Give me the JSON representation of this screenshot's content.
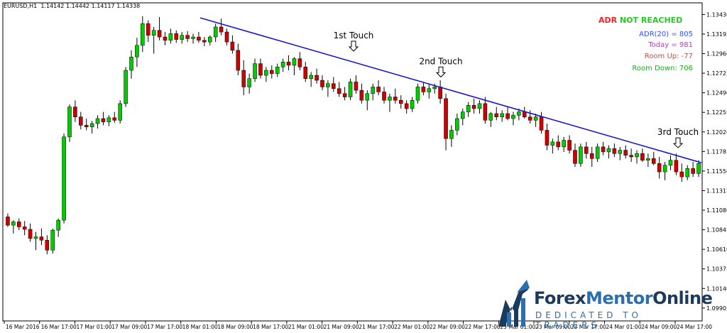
{
  "header": {
    "symbol": "EURUSD,H1",
    "ohlc": "1.14142 1.14442 1.14117 1.14338"
  },
  "adr_panel": {
    "title_part1": "ADR",
    "title_part2": "NOT",
    "title_part3": "REACHED",
    "adr20": "ADR(20) = 805",
    "today": "Today = 981",
    "room_up": "Room Up: -77",
    "room_down": "Room Down: 706",
    "colors": {
      "title_red": "#ff2020",
      "title_green": "#22cc22",
      "adr20": "#3050ff",
      "today": "#b040c0",
      "room_up": "#e04040",
      "room_down": "#22aa22"
    }
  },
  "logo": {
    "word_dark": "Forex",
    "word_mid": "Mentor",
    "word_dark2": "Online",
    "tagline": "DEDICATED TO TRADERS"
  },
  "chart_data": {
    "type": "candlestick",
    "y_ticks": [
      "1.13430",
      "1.13195",
      "1.12960",
      "1.12725",
      "1.12490",
      "1.12255",
      "1.12020",
      "1.11785",
      "1.11550",
      "1.11315",
      "1.11080",
      "1.10845",
      "1.10610",
      "1.10375",
      "1.10140",
      "1.09905"
    ],
    "ylim": [
      1.0975,
      1.1357
    ],
    "x_labels": [
      "16 Mar 2016",
      "16 Mar 17:00",
      "17 Mar 01:00",
      "17 Mar 09:00",
      "17 Mar 17:00",
      "18 Mar 01:00",
      "18 Mar 09:00",
      "18 Mar 17:00",
      "21 Mar 01:00",
      "21 Mar 09:00",
      "21 Mar 17:00",
      "22 Mar 01:00",
      "22 Mar 09:00",
      "22 Mar 17:00",
      "23 Mar 01:00",
      "23 Mar 09:00",
      "23 Mar 17:00",
      "24 Mar 01:00",
      "24 Mar 09:00",
      "24 Mar 17:00"
    ],
    "annotations": [
      "1st Touch",
      "2nd Touch",
      "3rd Touch"
    ],
    "trendline": {
      "start": [
        1.1339,
        0
      ],
      "end": [
        1.1165,
        1
      ]
    },
    "bullish_color": "#00cc00",
    "bearish_color": "#cc0000",
    "trendline_color": "#1a1acc",
    "candles": [
      [
        1.11,
        1.1104,
        1.1088,
        1.109
      ],
      [
        1.109,
        1.1096,
        1.108,
        1.1094
      ],
      [
        1.1094,
        1.1098,
        1.1084,
        1.1088
      ],
      [
        1.1088,
        1.1095,
        1.1078,
        1.1085
      ],
      [
        1.1085,
        1.1092,
        1.107,
        1.1074
      ],
      [
        1.1074,
        1.1082,
        1.106,
        1.1076
      ],
      [
        1.1076,
        1.1086,
        1.1066,
        1.1072
      ],
      [
        1.1072,
        1.1078,
        1.1055,
        1.106
      ],
      [
        1.106,
        1.1086,
        1.1056,
        1.1084
      ],
      [
        1.1084,
        1.1098,
        1.1076,
        1.1096
      ],
      [
        1.1096,
        1.12,
        1.1092,
        1.1196
      ],
      [
        1.1196,
        1.1235,
        1.119,
        1.1232
      ],
      [
        1.1232,
        1.124,
        1.1214,
        1.122
      ],
      [
        1.122,
        1.1226,
        1.1205,
        1.121
      ],
      [
        1.121,
        1.1218,
        1.1204,
        1.1208
      ],
      [
        1.1208,
        1.1215,
        1.12,
        1.1212
      ],
      [
        1.1212,
        1.1222,
        1.1206,
        1.1218
      ],
      [
        1.1218,
        1.1226,
        1.121,
        1.1214
      ],
      [
        1.1214,
        1.1222,
        1.1209,
        1.1219
      ],
      [
        1.1219,
        1.1226,
        1.1213,
        1.1216
      ],
      [
        1.1216,
        1.124,
        1.1212,
        1.1236
      ],
      [
        1.1236,
        1.128,
        1.1232,
        1.1276
      ],
      [
        1.1276,
        1.13,
        1.1266,
        1.1292
      ],
      [
        1.1292,
        1.1315,
        1.128,
        1.1306
      ],
      [
        1.1306,
        1.1341,
        1.1298,
        1.1332
      ],
      [
        1.1332,
        1.1336,
        1.131,
        1.1318
      ],
      [
        1.1318,
        1.1328,
        1.1296,
        1.1324
      ],
      [
        1.1324,
        1.134,
        1.1312,
        1.1316
      ],
      [
        1.1316,
        1.1322,
        1.1306,
        1.1312
      ],
      [
        1.1312,
        1.1326,
        1.1308,
        1.132
      ],
      [
        1.132,
        1.1324,
        1.1309,
        1.1313
      ],
      [
        1.1313,
        1.1322,
        1.1308,
        1.1318
      ],
      [
        1.1318,
        1.1323,
        1.131,
        1.1314
      ],
      [
        1.1314,
        1.132,
        1.1308,
        1.1316
      ],
      [
        1.1316,
        1.1322,
        1.1309,
        1.1312
      ],
      [
        1.1312,
        1.1316,
        1.1305,
        1.131
      ],
      [
        1.131,
        1.1318,
        1.1306,
        1.1316
      ],
      [
        1.1316,
        1.1332,
        1.131,
        1.1328
      ],
      [
        1.1328,
        1.1338,
        1.1318,
        1.1322
      ],
      [
        1.1322,
        1.1326,
        1.1306,
        1.131
      ],
      [
        1.131,
        1.1318,
        1.1296,
        1.13
      ],
      [
        1.13,
        1.1308,
        1.127,
        1.1276
      ],
      [
        1.1276,
        1.1288,
        1.1246,
        1.1256
      ],
      [
        1.1256,
        1.1272,
        1.1248,
        1.1266
      ],
      [
        1.1266,
        1.129,
        1.1262,
        1.1284
      ],
      [
        1.1284,
        1.129,
        1.1266,
        1.127
      ],
      [
        1.127,
        1.128,
        1.1262,
        1.1276
      ],
      [
        1.1276,
        1.1282,
        1.1266,
        1.1272
      ],
      [
        1.1272,
        1.1284,
        1.1268,
        1.128
      ],
      [
        1.128,
        1.129,
        1.1274,
        1.1286
      ],
      [
        1.1286,
        1.1294,
        1.1276,
        1.1282
      ],
      [
        1.1282,
        1.1292,
        1.127,
        1.129
      ],
      [
        1.129,
        1.1298,
        1.1276,
        1.128
      ],
      [
        1.128,
        1.1286,
        1.1262,
        1.1266
      ],
      [
        1.1266,
        1.1274,
        1.1256,
        1.127
      ],
      [
        1.127,
        1.1278,
        1.126,
        1.1264
      ],
      [
        1.1264,
        1.127,
        1.1252,
        1.1256
      ],
      [
        1.1256,
        1.1264,
        1.1244,
        1.126
      ],
      [
        1.126,
        1.1268,
        1.125,
        1.1254
      ],
      [
        1.1254,
        1.1262,
        1.1244,
        1.1248
      ],
      [
        1.1248,
        1.1256,
        1.124,
        1.1244
      ],
      [
        1.1244,
        1.1266,
        1.124,
        1.1262
      ],
      [
        1.1262,
        1.127,
        1.1248,
        1.1252
      ],
      [
        1.1252,
        1.126,
        1.1236,
        1.124
      ],
      [
        1.124,
        1.1252,
        1.1228,
        1.1248
      ],
      [
        1.1248,
        1.126,
        1.124,
        1.1256
      ],
      [
        1.1256,
        1.1264,
        1.1246,
        1.125
      ],
      [
        1.125,
        1.1256,
        1.1236,
        1.124
      ],
      [
        1.124,
        1.1248,
        1.1226,
        1.1244
      ],
      [
        1.1244,
        1.1254,
        1.1236,
        1.124
      ],
      [
        1.124,
        1.1246,
        1.123,
        1.1236
      ],
      [
        1.1236,
        1.124,
        1.1224,
        1.123
      ],
      [
        1.123,
        1.1244,
        1.1226,
        1.124
      ],
      [
        1.124,
        1.126,
        1.1236,
        1.1256
      ],
      [
        1.1256,
        1.1262,
        1.1246,
        1.125
      ],
      [
        1.125,
        1.126,
        1.1242,
        1.1254
      ],
      [
        1.1254,
        1.126,
        1.1248,
        1.1256
      ],
      [
        1.1256,
        1.1264,
        1.1236,
        1.1242
      ],
      [
        1.1242,
        1.1248,
        1.118,
        1.1194
      ],
      [
        1.1194,
        1.121,
        1.1184,
        1.1204
      ],
      [
        1.1204,
        1.1224,
        1.1198,
        1.1218
      ],
      [
        1.1218,
        1.123,
        1.121,
        1.1226
      ],
      [
        1.1226,
        1.1238,
        1.122,
        1.1234
      ],
      [
        1.1234,
        1.1242,
        1.1224,
        1.123
      ],
      [
        1.123,
        1.124,
        1.1224,
        1.1236
      ],
      [
        1.1236,
        1.1244,
        1.1212,
        1.1216
      ],
      [
        1.1216,
        1.1226,
        1.1208,
        1.1224
      ],
      [
        1.1224,
        1.1232,
        1.1216,
        1.122
      ],
      [
        1.122,
        1.1228,
        1.1214,
        1.1224
      ],
      [
        1.1224,
        1.1232,
        1.1216,
        1.1218
      ],
      [
        1.1218,
        1.1226,
        1.121,
        1.1222
      ],
      [
        1.1222,
        1.123,
        1.1216,
        1.1226
      ],
      [
        1.1226,
        1.1232,
        1.1218,
        1.122
      ],
      [
        1.122,
        1.1228,
        1.1212,
        1.1216
      ],
      [
        1.1216,
        1.1224,
        1.1208,
        1.122
      ],
      [
        1.122,
        1.1226,
        1.12,
        1.1204
      ],
      [
        1.1204,
        1.1212,
        1.118,
        1.1186
      ],
      [
        1.1186,
        1.1194,
        1.1176,
        1.119
      ],
      [
        1.119,
        1.1198,
        1.118,
        1.1184
      ],
      [
        1.1184,
        1.1196,
        1.1178,
        1.1192
      ],
      [
        1.1192,
        1.1198,
        1.1176,
        1.118
      ],
      [
        1.118,
        1.1188,
        1.116,
        1.1164
      ],
      [
        1.1164,
        1.1188,
        1.116,
        1.1184
      ],
      [
        1.1184,
        1.119,
        1.117,
        1.1176
      ],
      [
        1.1176,
        1.1184,
        1.116,
        1.117
      ],
      [
        1.117,
        1.1188,
        1.1166,
        1.1184
      ],
      [
        1.1184,
        1.119,
        1.1174,
        1.1178
      ],
      [
        1.1178,
        1.1186,
        1.117,
        1.1182
      ],
      [
        1.1182,
        1.1188,
        1.1172,
        1.1176
      ],
      [
        1.1176,
        1.1184,
        1.1168,
        1.118
      ],
      [
        1.118,
        1.1186,
        1.117,
        1.1174
      ],
      [
        1.1174,
        1.1182,
        1.1166,
        1.1172
      ],
      [
        1.1172,
        1.118,
        1.1164,
        1.1176
      ],
      [
        1.1176,
        1.1182,
        1.1166,
        1.1168
      ],
      [
        1.1168,
        1.1176,
        1.116,
        1.117
      ],
      [
        1.117,
        1.1178,
        1.1162,
        1.1164
      ],
      [
        1.1164,
        1.1172,
        1.1146,
        1.1154
      ],
      [
        1.1154,
        1.1166,
        1.1144,
        1.1162
      ],
      [
        1.1162,
        1.1174,
        1.1156,
        1.1168
      ],
      [
        1.1168,
        1.1176,
        1.115,
        1.1154
      ],
      [
        1.1154,
        1.1164,
        1.1142,
        1.1148
      ],
      [
        1.1148,
        1.1162,
        1.1144,
        1.1158
      ],
      [
        1.1158,
        1.1166,
        1.1148,
        1.1152
      ],
      [
        1.1152,
        1.1168,
        1.1148,
        1.1164
      ]
    ]
  }
}
